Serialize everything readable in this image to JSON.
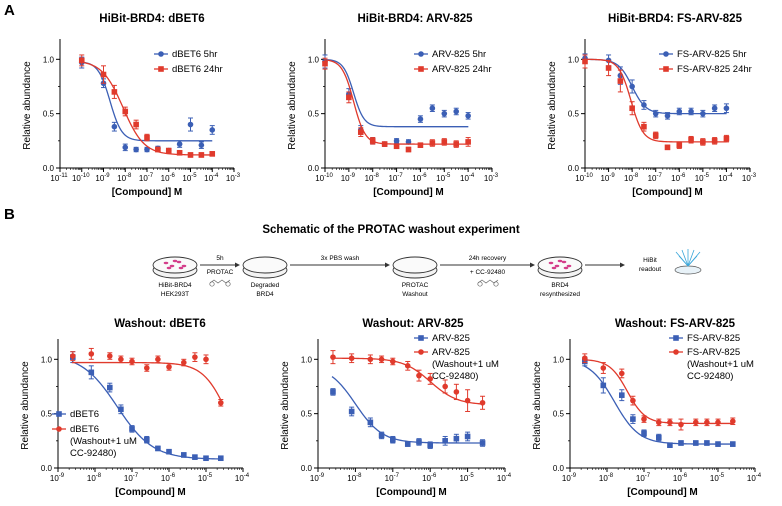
{
  "panel_labels": {
    "a": "A",
    "b": "B"
  },
  "schematic": {
    "title": "Schematic of the PROTAC washout experiment",
    "steps": [
      {
        "lines": [
          "HiBit-BRD4",
          "HEK293T"
        ]
      },
      {
        "lines": [
          "Degraded",
          "BRD4"
        ]
      },
      {
        "lines": [
          "PROTAC",
          "Washout"
        ]
      },
      {
        "lines": [
          "BRD4",
          "resynthesized"
        ]
      }
    ],
    "arrow_labels": [
      {
        "top": "5h",
        "bottom": "PROTAC"
      },
      {
        "top": "3x PBS wash",
        "bottom": ""
      },
      {
        "top": "24h recovery",
        "bottom": "+ CC-92480"
      }
    ],
    "readout_lines": [
      "HiBit",
      "readout"
    ]
  },
  "chart_data": [
    {
      "id": "a1",
      "type": "scatter",
      "title": "HiBit-BRD4: dBET6",
      "xlabel": "[Compound] M",
      "ylabel": "Relative abundance",
      "xscale": "log10",
      "xlim": [
        -11,
        -3
      ],
      "ylim": [
        0,
        1.15
      ],
      "xticks": [
        -11,
        -10,
        -9,
        -8,
        -7,
        -6,
        -5,
        -4,
        -3
      ],
      "xtick_labels": [
        "-11",
        "-10",
        "-9",
        "-8",
        "-7",
        "-6",
        "-5",
        "-4",
        "-3"
      ],
      "yticks": [
        0,
        0.5,
        1.0
      ],
      "ytick_labels": [
        "0.0",
        "0.5",
        "1.0"
      ],
      "legend_position": "top-right",
      "series": [
        {
          "name": "dBET6 5hr",
          "color": "#3b5fb5",
          "marker": "circle",
          "x": [
            -10,
            -9,
            -8.5,
            -8,
            -7.5,
            -7,
            -6.5,
            -6,
            -5.5,
            -5,
            -4.5,
            -4
          ],
          "y": [
            0.97,
            0.78,
            0.38,
            0.19,
            0.17,
            0.17,
            0.18,
            0.16,
            0.22,
            0.4,
            0.21,
            0.35
          ],
          "err": [
            0.05,
            0.04,
            0.04,
            0.03,
            0.02,
            0.02,
            0.02,
            0.02,
            0.03,
            0.06,
            0.03,
            0.04
          ],
          "fit": {
            "top": 0.98,
            "bottom": 0.25,
            "log_ec50": -8.7,
            "hill": 1.6
          }
        },
        {
          "name": "dBET6 24hr",
          "color": "#e03a2c",
          "marker": "square",
          "x": [
            -10,
            -9,
            -8.5,
            -8,
            -7.5,
            -7,
            -6.5,
            -6,
            -5.5,
            -5,
            -4.5,
            -4
          ],
          "y": [
            0.99,
            0.86,
            0.7,
            0.52,
            0.4,
            0.28,
            0.17,
            0.16,
            0.14,
            0.12,
            0.12,
            0.13
          ],
          "err": [
            0.05,
            0.08,
            0.06,
            0.04,
            0.04,
            0.03,
            0.02,
            0.02,
            0.02,
            0.02,
            0.02,
            0.02
          ],
          "fit": {
            "top": 0.99,
            "bottom": 0.12,
            "log_ec50": -8.1,
            "hill": 0.9
          }
        }
      ]
    },
    {
      "id": "a2",
      "type": "scatter",
      "title": "HiBit-BRD4: ARV-825",
      "xlabel": "[Compound] M",
      "ylabel": "Relative abundance",
      "xscale": "log10",
      "xlim": [
        -10,
        -3
      ],
      "ylim": [
        0,
        1.15
      ],
      "xticks": [
        -10,
        -9,
        -8,
        -7,
        -6,
        -5,
        -4,
        -3
      ],
      "xtick_labels": [
        "-10",
        "-9",
        "-8",
        "-7",
        "-6",
        "-5",
        "-4",
        "-3"
      ],
      "yticks": [
        0,
        0.5,
        1.0
      ],
      "ytick_labels": [
        "0.0",
        "0.5",
        "1.0"
      ],
      "legend_position": "top-right",
      "series": [
        {
          "name": "ARV-825 5hr",
          "color": "#3b5fb5",
          "marker": "circle",
          "x": [
            -10,
            -9,
            -8.5,
            -8,
            -7.5,
            -7,
            -6.5,
            -6,
            -5.5,
            -5,
            -4.5,
            -4
          ],
          "y": [
            0.98,
            0.68,
            0.35,
            0.25,
            0.22,
            0.25,
            0.24,
            0.45,
            0.55,
            0.5,
            0.52,
            0.48
          ],
          "err": [
            0.06,
            0.05,
            0.04,
            0.03,
            0.02,
            0.02,
            0.02,
            0.03,
            0.03,
            0.03,
            0.03,
            0.03
          ],
          "fit": {
            "top": 1.0,
            "bottom": 0.38,
            "log_ec50": -8.8,
            "hill": 2.0
          }
        },
        {
          "name": "ARV-825 24hr",
          "color": "#e03a2c",
          "marker": "square",
          "x": [
            -10,
            -9,
            -8.5,
            -8,
            -7.5,
            -7,
            -6.5,
            -6,
            -5.5,
            -5,
            -4.5,
            -4
          ],
          "y": [
            0.96,
            0.65,
            0.33,
            0.25,
            0.22,
            0.2,
            0.17,
            0.21,
            0.23,
            0.24,
            0.22,
            0.24
          ],
          "err": [
            0.05,
            0.05,
            0.04,
            0.03,
            0.02,
            0.02,
            0.02,
            0.02,
            0.03,
            0.03,
            0.03,
            0.04
          ],
          "fit": {
            "top": 1.0,
            "bottom": 0.22,
            "log_ec50": -8.8,
            "hill": 1.8
          }
        }
      ]
    },
    {
      "id": "a3",
      "type": "scatter",
      "title": "HiBit-BRD4: FS-ARV-825",
      "xlabel": "[Compound] M",
      "ylabel": "Relative abundance",
      "xscale": "log10",
      "xlim": [
        -10,
        -3
      ],
      "ylim": [
        0,
        1.15
      ],
      "xticks": [
        -10,
        -9,
        -8,
        -7,
        -6,
        -5,
        -4,
        -3
      ],
      "xtick_labels": [
        "-10",
        "-9",
        "-8",
        "-7",
        "-6",
        "-5",
        "-4",
        "-3"
      ],
      "yticks": [
        0,
        0.5,
        1.0
      ],
      "ytick_labels": [
        "0.0",
        "0.5",
        "1.0"
      ],
      "legend_position": "top-right",
      "series": [
        {
          "name": "FS-ARV-825 5hr",
          "color": "#3b5fb5",
          "marker": "circle",
          "x": [
            -10,
            -9,
            -8.5,
            -8,
            -7.5,
            -7,
            -6.5,
            -6,
            -5.5,
            -5,
            -4.5,
            -4
          ],
          "y": [
            1.01,
            0.99,
            0.85,
            0.75,
            0.58,
            0.5,
            0.48,
            0.52,
            0.52,
            0.5,
            0.55,
            0.55
          ],
          "err": [
            0.04,
            0.05,
            0.08,
            0.06,
            0.04,
            0.03,
            0.03,
            0.03,
            0.03,
            0.03,
            0.03,
            0.04
          ],
          "fit": {
            "top": 1.0,
            "bottom": 0.5,
            "log_ec50": -8.0,
            "hill": 1.5
          }
        },
        {
          "name": "FS-ARV-825 24hr",
          "color": "#e03a2c",
          "marker": "square",
          "x": [
            -10,
            -9,
            -8.5,
            -8,
            -7.5,
            -7,
            -6.5,
            -6,
            -5.5,
            -5,
            -4.5,
            -4
          ],
          "y": [
            0.98,
            0.92,
            0.8,
            0.55,
            0.38,
            0.3,
            0.19,
            0.21,
            0.26,
            0.24,
            0.25,
            0.27
          ],
          "err": [
            0.06,
            0.07,
            0.1,
            0.06,
            0.04,
            0.03,
            0.02,
            0.03,
            0.03,
            0.03,
            0.03,
            0.03
          ],
          "fit": {
            "top": 1.0,
            "bottom": 0.24,
            "log_ec50": -8.05,
            "hill": 1.7
          }
        }
      ]
    },
    {
      "id": "b1",
      "type": "scatter",
      "title": "Washout: dBET6",
      "xlabel": "[Compound] M",
      "ylabel": "Relative abundance",
      "xscale": "log10",
      "xlim": [
        -9,
        -4
      ],
      "ylim": [
        0,
        1.15
      ],
      "xticks": [
        -9,
        -8,
        -7,
        -6,
        -5,
        -4
      ],
      "xtick_labels": [
        "-9",
        "-8",
        "-7",
        "-6",
        "-5",
        "-4"
      ],
      "yticks": [
        0,
        0.5,
        1.0
      ],
      "ytick_labels": [
        "0.0",
        "0.5",
        "1.0"
      ],
      "legend_position": "bottom-left",
      "series": [
        {
          "name": "dBET6",
          "color": "#3b5fb5",
          "marker": "square",
          "x": [
            -8.6,
            -8.1,
            -7.6,
            -7.3,
            -7.0,
            -6.6,
            -6.3,
            -6.0,
            -5.6,
            -5.3,
            -5.0,
            -4.6
          ],
          "y": [
            1.02,
            0.88,
            0.74,
            0.54,
            0.36,
            0.26,
            0.18,
            0.15,
            0.12,
            0.1,
            0.09,
            0.09
          ],
          "err": [
            0.05,
            0.06,
            0.04,
            0.04,
            0.03,
            0.03,
            0.02,
            0.02,
            0.02,
            0.02,
            0.02,
            0.02
          ],
          "fit": {
            "top": 1.05,
            "bottom": 0.08,
            "log_ec50": -7.4,
            "hill": 0.9
          }
        },
        {
          "name": "dBET6 (Washout+1 uM CC-92480)",
          "color": "#e03a2c",
          "marker": "circle",
          "x": [
            -8.6,
            -8.1,
            -7.6,
            -7.3,
            -7.0,
            -6.6,
            -6.3,
            -6.0,
            -5.6,
            -5.3,
            -5.0,
            -4.6
          ],
          "y": [
            1.03,
            1.05,
            1.03,
            1.0,
            0.98,
            0.92,
            1.0,
            0.93,
            0.97,
            1.02,
            1.0,
            0.6
          ],
          "err": [
            0.04,
            0.05,
            0.03,
            0.03,
            0.03,
            0.03,
            0.03,
            0.03,
            0.03,
            0.04,
            0.04,
            0.03
          ],
          "fit": {
            "top": 0.97,
            "bottom": 0.0,
            "log_ec50": -4.4,
            "hill": 1.3
          }
        }
      ]
    },
    {
      "id": "b2",
      "type": "scatter",
      "title": "Washout: ARV-825",
      "xlabel": "[Compound] M",
      "ylabel": "Relative abundance",
      "xscale": "log10",
      "xlim": [
        -9,
        -4
      ],
      "ylim": [
        0,
        1.15
      ],
      "xticks": [
        -9,
        -8,
        -7,
        -6,
        -5,
        -4
      ],
      "xtick_labels": [
        "-9",
        "-8",
        "-7",
        "-6",
        "-5",
        "-4"
      ],
      "yticks": [
        0,
        0.5,
        1.0
      ],
      "ytick_labels": [
        "0.0",
        "0.5",
        "1.0"
      ],
      "legend_position": "top-right",
      "series": [
        {
          "name": "ARV-825",
          "color": "#3b5fb5",
          "marker": "square",
          "x": [
            -8.6,
            -8.1,
            -7.6,
            -7.3,
            -7.0,
            -6.6,
            -6.3,
            -6.0,
            -5.6,
            -5.3,
            -5.0,
            -4.6
          ],
          "y": [
            0.7,
            0.52,
            0.42,
            0.3,
            0.26,
            0.22,
            0.24,
            0.21,
            0.25,
            0.27,
            0.29,
            0.23
          ],
          "err": [
            0.03,
            0.04,
            0.04,
            0.03,
            0.03,
            0.02,
            0.03,
            0.03,
            0.04,
            0.04,
            0.04,
            0.03
          ],
          "fit": {
            "top": 0.95,
            "bottom": 0.23,
            "log_ec50": -8.0,
            "hill": 1.2
          }
        },
        {
          "name": "ARV-825 (Washout+1 uM CC-92480)",
          "color": "#e03a2c",
          "marker": "circle",
          "x": [
            -8.6,
            -8.1,
            -7.6,
            -7.3,
            -7.0,
            -6.6,
            -6.3,
            -6.0,
            -5.6,
            -5.3,
            -5.0,
            -4.6
          ],
          "y": [
            1.02,
            1.01,
            1.0,
            1.0,
            0.98,
            0.94,
            0.85,
            0.82,
            0.75,
            0.7,
            0.62,
            0.6
          ],
          "err": [
            0.06,
            0.04,
            0.04,
            0.03,
            0.03,
            0.04,
            0.05,
            0.05,
            0.06,
            0.07,
            0.1,
            0.06
          ],
          "fit": {
            "top": 1.01,
            "bottom": 0.58,
            "log_ec50": -6.0,
            "hill": 1.2
          }
        }
      ]
    },
    {
      "id": "b3",
      "type": "scatter",
      "title": "Washout: FS-ARV-825",
      "xlabel": "[Compound] M",
      "ylabel": "Relative abundance",
      "xscale": "log10",
      "xlim": [
        -9,
        -4
      ],
      "ylim": [
        0,
        1.15
      ],
      "xticks": [
        -9,
        -8,
        -7,
        -6,
        -5,
        -4
      ],
      "xtick_labels": [
        "-9",
        "-8",
        "-7",
        "-6",
        "-5",
        "-4"
      ],
      "yticks": [
        0,
        0.5,
        1.0
      ],
      "ytick_labels": [
        "0.0",
        "0.5",
        "1.0"
      ],
      "legend_position": "top-right",
      "series": [
        {
          "name": "FS-ARV-825",
          "color": "#3b5fb5",
          "marker": "square",
          "x": [
            -8.6,
            -8.1,
            -7.6,
            -7.3,
            -7.0,
            -6.6,
            -6.3,
            -6.0,
            -5.6,
            -5.3,
            -5.0,
            -4.6
          ],
          "y": [
            0.98,
            0.76,
            0.67,
            0.45,
            0.32,
            0.28,
            0.21,
            0.23,
            0.23,
            0.23,
            0.22,
            0.22
          ],
          "err": [
            0.04,
            0.07,
            0.05,
            0.04,
            0.03,
            0.03,
            0.02,
            0.02,
            0.02,
            0.02,
            0.02,
            0.02
          ],
          "fit": {
            "top": 1.0,
            "bottom": 0.22,
            "log_ec50": -7.8,
            "hill": 1.3
          }
        },
        {
          "name": "FS-ARV-825 (Washout+1 uM CC-92480)",
          "color": "#e03a2c",
          "marker": "circle",
          "x": [
            -8.6,
            -8.1,
            -7.6,
            -7.3,
            -7.0,
            -6.6,
            -6.3,
            -6.0,
            -5.6,
            -5.3,
            -5.0,
            -4.6
          ],
          "y": [
            1.01,
            0.92,
            0.87,
            0.62,
            0.45,
            0.42,
            0.42,
            0.4,
            0.42,
            0.42,
            0.42,
            0.43
          ],
          "err": [
            0.04,
            0.05,
            0.04,
            0.04,
            0.03,
            0.03,
            0.03,
            0.05,
            0.03,
            0.03,
            0.03,
            0.03
          ],
          "fit": {
            "top": 1.0,
            "bottom": 0.41,
            "log_ec50": -7.45,
            "hill": 1.8
          }
        }
      ]
    }
  ]
}
